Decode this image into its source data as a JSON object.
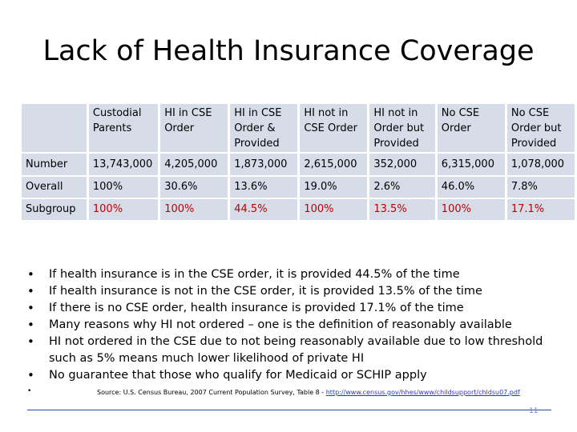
{
  "title": "Lack of Health Insurance Coverage",
  "table": {
    "headers": [
      "",
      "Custodial Parents",
      "HI in CSE Order",
      "HI in CSE Order & Provided",
      "HI not in CSE Order",
      "HI not in Order but Provided",
      "No CSE Order",
      "No CSE Order but Provided"
    ],
    "rows": [
      {
        "label": "Number",
        "cells": [
          "13,743,000",
          "4,205,000",
          "1,873,000",
          "2,615,000",
          "352,000",
          "6,315,000",
          "1,078,000"
        ]
      },
      {
        "label": "Overall",
        "cells": [
          "100%",
          "30.6%",
          "13.6%",
          "19.0%",
          "2.6%",
          "46.0%",
          "7.8%"
        ]
      },
      {
        "label": "Subgroup",
        "cells": [
          "100%",
          "100%",
          "44.5%",
          "100%",
          "13.5%",
          "100%",
          "17.1%"
        ]
      }
    ],
    "colors": {
      "header_bg": "#d6dde8",
      "highlight": "#c00000"
    }
  },
  "bullets": [
    "If health insurance is in the CSE order, it is provided 44.5% of the time",
    "If health insurance is not in the CSE order, it is provided 13.5% of the time",
    "If there is no CSE order, health insurance is provided 17.1% of the time",
    "Many reasons why HI not ordered – one is the definition of reasonably available",
    "HI not ordered in the CSE due to not being reasonably available due to low threshold such as 5% means much lower likelihood of private HI",
    "No guarantee that those who qualify for Medicaid or SCHIP apply"
  ],
  "source": {
    "text": "Source: U.S. Census Bureau, 2007 Current Population Survey, Table 8 - ",
    "link": "http://www.census.gov/hhes/www/childsupport/chldsu07.pdf"
  },
  "page_number": "11"
}
